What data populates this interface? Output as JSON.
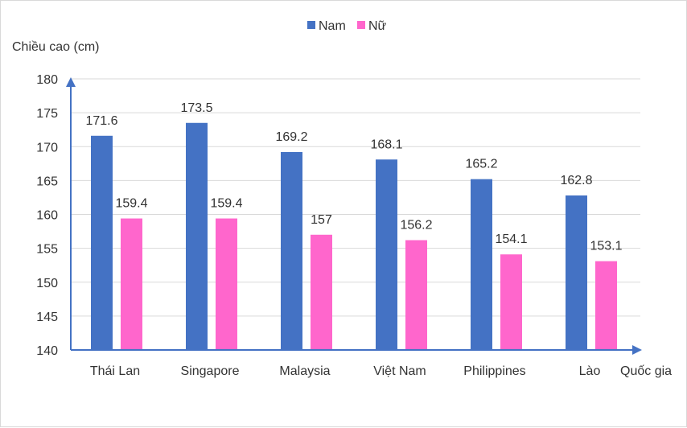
{
  "chart_data": {
    "type": "bar",
    "title": "",
    "ylabel": "Chiều cao (cm)",
    "xlabel": "Quốc gia",
    "ylim": [
      140,
      180
    ],
    "yticks": [
      140,
      145,
      150,
      155,
      160,
      165,
      170,
      175,
      180
    ],
    "categories": [
      "Thái Lan",
      "Singapore",
      "Malaysia",
      "Việt Nam",
      "Philippines",
      "Lào"
    ],
    "series": [
      {
        "name": "Nam",
        "color": "#4472c4",
        "values": [
          171.6,
          173.5,
          169.2,
          168.1,
          165.2,
          162.8
        ],
        "labels": [
          "171.6",
          "173.5",
          "169.2",
          "168.1",
          "165.2",
          "162.8"
        ]
      },
      {
        "name": "Nữ",
        "color": "#ff66cc",
        "values": [
          159.4,
          159.4,
          157,
          156.2,
          154.1,
          153.1
        ],
        "labels": [
          "159.4",
          "159.4",
          "157",
          "156.2",
          "154.1",
          "153.1"
        ]
      }
    ],
    "grid": true,
    "legend": "top-center"
  }
}
